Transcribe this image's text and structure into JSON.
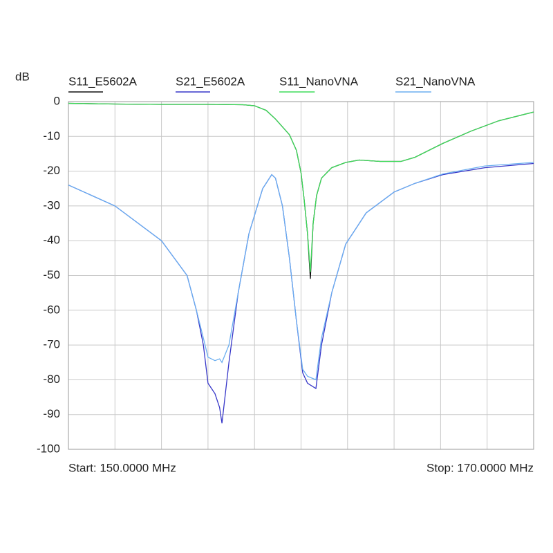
{
  "chart_data": {
    "type": "line",
    "y_unit": "dB",
    "start_label": "Start: 150.0000 MHz",
    "stop_label": "Stop: 170.0000 MHz",
    "xlim": [
      150,
      170
    ],
    "xticks": [
      150,
      152,
      154,
      156,
      158,
      160,
      162,
      164,
      166,
      168,
      170
    ],
    "ylim": [
      -100,
      0
    ],
    "yticks": [
      0,
      -10,
      -20,
      -30,
      -40,
      -50,
      -60,
      -70,
      -80,
      -90,
      -100
    ],
    "grid": true,
    "series": [
      {
        "name": "S11_E5602A",
        "color": "#111111",
        "x": [
          150,
          152,
          154,
          156,
          157.5,
          158,
          158.5,
          158.9,
          159.5,
          159.8,
          160,
          160.13,
          160.28,
          160.4,
          160.52,
          160.67,
          160.88,
          161.32,
          161.92,
          162.5,
          163.4,
          164.3,
          164.9,
          166.1,
          167.3,
          168.5,
          170
        ],
        "values": [
          -0.5,
          -0.7,
          -0.8,
          -0.8,
          -0.9,
          -1.2,
          -2.5,
          -5,
          -9.5,
          -14,
          -20.5,
          -28,
          -38,
          -51,
          -35,
          -27,
          -22,
          -19,
          -17.5,
          -16.8,
          -17.2,
          -17.2,
          -16,
          -12,
          -8.5,
          -5.5,
          -3
        ]
      },
      {
        "name": "S21_E5602A",
        "color": "#3535c8",
        "x": [
          150,
          152,
          154,
          155.1,
          155.5,
          155.8,
          156,
          156.3,
          156.5,
          156.6,
          156.9,
          157.3,
          157.76,
          158.35,
          158.74,
          158.9,
          159.2,
          159.5,
          159.8,
          160.07,
          160.28,
          160.64,
          160.88,
          161.32,
          161.92,
          162.8,
          164,
          164.9,
          166.1,
          167.9,
          170
        ],
        "values": [
          -24,
          -30,
          -40,
          -50,
          -60,
          -70,
          -81,
          -84,
          -88,
          -92.5,
          -75,
          -55,
          -38,
          -25,
          -21,
          -22,
          -30,
          -45,
          -63,
          -78,
          -81,
          -82.5,
          -70,
          -55,
          -41,
          -32,
          -26,
          -23.5,
          -21,
          -19,
          -17.8
        ]
      },
      {
        "name": "S11_NanoVNA",
        "color": "#3ddc5a",
        "x": [
          150,
          152,
          154,
          156,
          157.5,
          158,
          158.5,
          158.9,
          159.5,
          159.8,
          160,
          160.13,
          160.28,
          160.4,
          160.52,
          160.67,
          160.88,
          161.32,
          161.92,
          162.5,
          163.4,
          164.3,
          164.9,
          166.1,
          167.3,
          168.5,
          170
        ],
        "values": [
          -0.5,
          -0.7,
          -0.8,
          -0.8,
          -0.9,
          -1.2,
          -2.5,
          -5,
          -9.5,
          -14,
          -20.5,
          -28,
          -38,
          -49,
          -35,
          -27,
          -22,
          -19,
          -17.5,
          -16.8,
          -17.2,
          -17.2,
          -16,
          -12,
          -8.5,
          -5.5,
          -3
        ]
      },
      {
        "name": "S21_NanoVNA",
        "color": "#6aaef0",
        "x": [
          150,
          152,
          154,
          155.1,
          155.5,
          155.8,
          156,
          156.3,
          156.5,
          156.6,
          156.9,
          157.3,
          157.76,
          158.35,
          158.74,
          158.9,
          159.2,
          159.5,
          159.8,
          160.07,
          160.28,
          160.64,
          160.88,
          161.32,
          161.92,
          162.8,
          164,
          164.9,
          166.1,
          167.9,
          170
        ],
        "values": [
          -24,
          -30,
          -40,
          -50,
          -60,
          -68,
          -73.5,
          -74.5,
          -74,
          -75,
          -70,
          -55,
          -38,
          -25,
          -21,
          -22,
          -30,
          -45,
          -63,
          -77,
          -79,
          -80,
          -68,
          -55,
          -41,
          -32,
          -26,
          -23.5,
          -20.8,
          -18.5,
          -17.5
        ]
      }
    ]
  }
}
